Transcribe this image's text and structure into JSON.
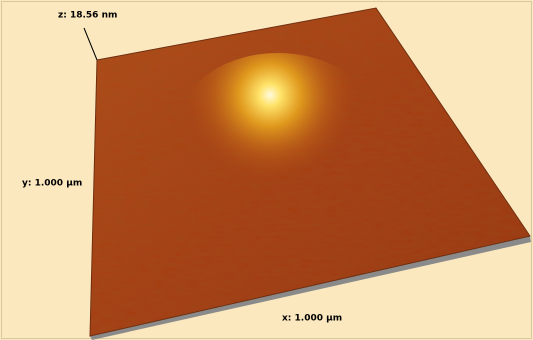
{
  "labels": {
    "z": "z:  18.56 nm",
    "y": "y:  1.000 µm",
    "x": "x:  1.000 µm"
  }
}
